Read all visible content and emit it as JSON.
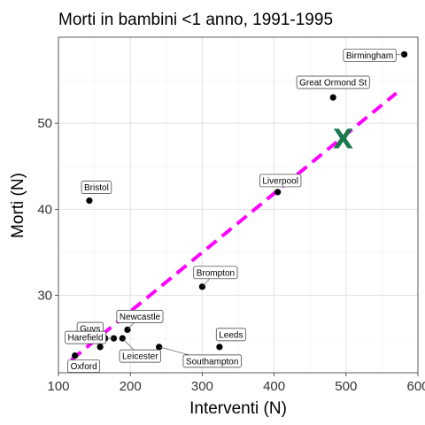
{
  "chart_data": {
    "type": "scatter",
    "title": "Morti in bambini <1 anno, 1991-1995",
    "xlabel": "Interventi (N)",
    "ylabel": "Morti (N)",
    "xlim": [
      100,
      600
    ],
    "ylim": [
      21,
      60
    ],
    "xticks": [
      100,
      200,
      300,
      400,
      500,
      600
    ],
    "yticks": [
      30,
      40,
      50
    ],
    "grid": true,
    "point_color": "#000000",
    "points": [
      {
        "label": "Birmingham",
        "x": 581,
        "y": 58
      },
      {
        "label": "Great Ormond St",
        "x": 482,
        "y": 53
      },
      {
        "label": "Liverpool",
        "x": 405,
        "y": 42
      },
      {
        "label": "Bristol",
        "x": 143,
        "y": 41
      },
      {
        "label": "Brompton",
        "x": 300,
        "y": 31
      },
      {
        "label": "Newcastle",
        "x": 196,
        "y": 26
      },
      {
        "label": "Guys",
        "x": 165,
        "y": 25
      },
      {
        "label": "Harefield",
        "x": 177,
        "y": 25
      },
      {
        "label": "Oxford",
        "x": 123,
        "y": 23
      },
      {
        "label": "Leicester",
        "x": 189,
        "y": 25
      },
      {
        "label": "Southampton",
        "x": 240,
        "y": 24
      },
      {
        "label": "Leeds",
        "x": 324,
        "y": 24
      },
      {
        "label": "",
        "x": 158,
        "y": 24
      }
    ],
    "trend_line": {
      "color": "#ff00ff",
      "style": "dashed",
      "x": [
        118,
        570
      ],
      "y": [
        22.5,
        53.5
      ]
    },
    "highlight": {
      "symbol": "X",
      "color": "#1a7a4c",
      "x": 496,
      "y": 48.2
    }
  }
}
